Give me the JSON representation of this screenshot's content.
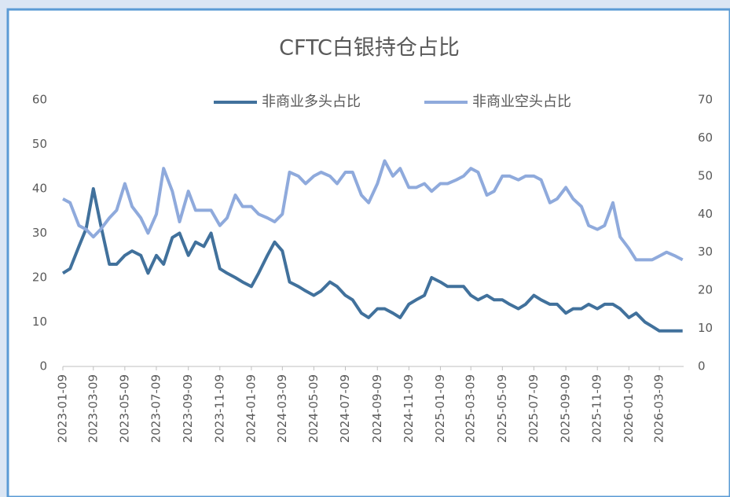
{
  "chart_data": {
    "type": "line",
    "title": "CFTC白银持仓占比",
    "x": [
      "2023-01-09",
      "2023-01-23",
      "2023-02-09",
      "2023-02-23",
      "2023-03-09",
      "2023-03-23",
      "2023-04-09",
      "2023-04-23",
      "2023-05-09",
      "2023-05-23",
      "2023-06-09",
      "2023-06-23",
      "2023-07-09",
      "2023-07-23",
      "2023-08-09",
      "2023-08-23",
      "2023-09-09",
      "2023-09-23",
      "2023-10-09",
      "2023-10-23",
      "2023-11-09",
      "2023-11-23",
      "2023-12-09",
      "2023-12-23",
      "2024-01-09",
      "2024-01-23",
      "2024-02-09",
      "2024-02-23",
      "2024-03-09",
      "2024-03-23",
      "2024-04-09",
      "2024-04-23",
      "2024-05-09",
      "2024-05-23",
      "2024-06-09",
      "2024-06-23",
      "2024-07-09",
      "2024-07-23",
      "2024-08-09",
      "2024-08-23",
      "2024-09-09",
      "2024-09-23",
      "2024-10-09",
      "2024-10-23",
      "2024-11-09",
      "2024-11-23",
      "2024-12-09",
      "2024-12-23",
      "2025-01-09",
      "2025-01-23",
      "2025-02-09",
      "2025-02-23",
      "2025-03-09",
      "2025-03-23",
      "2025-04-09",
      "2025-04-23",
      "2025-05-09",
      "2025-05-23",
      "2025-06-09",
      "2025-06-23",
      "2025-07-09",
      "2025-07-23",
      "2025-08-09",
      "2025-08-23",
      "2025-09-09",
      "2025-09-23",
      "2025-10-09",
      "2025-10-23",
      "2025-11-09",
      "2025-11-23",
      "2025-12-09",
      "2025-12-23",
      "2026-01-09",
      "2026-01-23",
      "2026-02-09",
      "2026-02-23",
      "2026-03-09",
      "2026-03-23",
      "2026-04-09",
      "2026-04-23"
    ],
    "series": [
      {
        "name": "非商业多头占比",
        "color": "#41719c",
        "values": [
          21,
          22,
          27,
          31,
          40,
          32,
          23,
          23,
          25,
          26,
          25,
          21,
          25,
          23,
          29,
          30,
          25,
          28,
          27,
          30,
          22,
          21,
          20,
          19,
          18,
          21,
          25,
          28,
          26,
          19,
          18,
          17,
          16,
          17,
          19,
          18,
          16,
          15,
          12,
          11,
          13,
          13,
          12,
          11,
          14,
          15,
          16,
          20,
          19,
          18,
          18,
          18,
          16,
          15,
          16,
          15,
          15,
          14,
          13,
          14,
          16,
          15,
          14,
          14,
          12,
          13,
          13,
          14,
          13,
          14,
          14,
          13,
          11,
          12,
          10,
          9,
          8,
          8,
          8,
          8
        ]
      },
      {
        "name": "非商业空头占比",
        "color": "#8faadc",
        "axis": "y2",
        "values": [
          44,
          43,
          37,
          36,
          34,
          36,
          39,
          41,
          48,
          42,
          39,
          35,
          40,
          52,
          46,
          38,
          46,
          41,
          41,
          41,
          37,
          39,
          45,
          42,
          42,
          40,
          39,
          38,
          40,
          51,
          50,
          48,
          50,
          51,
          50,
          48,
          51,
          51,
          45,
          43,
          48,
          54,
          50,
          52,
          47,
          47,
          48,
          46,
          48,
          48,
          49,
          50,
          52,
          51,
          45,
          46,
          50,
          50,
          49,
          50,
          50,
          49,
          43,
          44,
          47,
          44,
          42,
          37,
          36,
          37,
          43,
          34,
          31,
          28,
          28,
          28,
          29,
          30,
          29,
          28
        ]
      }
    ],
    "xlim": [
      "2023-01-09",
      "2026-04-25"
    ],
    "xticks": [
      "2023-01-09",
      "2023-03-09",
      "2023-05-09",
      "2023-07-09",
      "2023-09-09",
      "2023-11-09",
      "2024-01-09",
      "2024-03-09",
      "2024-05-09",
      "2024-07-09",
      "2024-09-09",
      "2024-11-09",
      "2025-01-09",
      "2025-03-09",
      "2025-05-09",
      "2025-07-09",
      "2025-09-09",
      "2025-11-09",
      "2026-01-09",
      "2026-03-09"
    ],
    "ylim": [
      0,
      60
    ],
    "yticks": [
      0,
      10,
      20,
      30,
      40,
      50,
      60
    ],
    "y2lim": [
      0,
      70
    ],
    "y2ticks": [
      0,
      10,
      20,
      30,
      40,
      50,
      60,
      70
    ],
    "legend": "top",
    "grid": false
  }
}
